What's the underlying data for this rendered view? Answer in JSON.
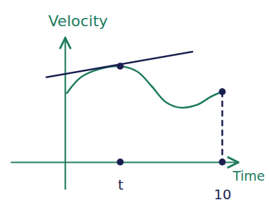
{
  "chart_data": {
    "type": "line",
    "y_label": "Velocity",
    "x_label": "Time",
    "xlim": [
      -3.5,
      11
    ],
    "xticks": [
      {
        "value": 3.5,
        "label": "t"
      },
      10
    ],
    "ylim": [
      -2,
      9
    ],
    "tick_labels": "x",
    "series": [
      {
        "type": "line",
        "color": "#1e7b5e",
        "x": [
          0.1,
          1.0,
          2.2,
          3.5,
          4.6,
          5.5,
          6.4,
          7.3,
          8.4,
          9.3,
          10
        ],
        "values": [
          5.0,
          6.15,
          6.75,
          6.95,
          6.55,
          5.5,
          4.35,
          3.95,
          4.15,
          4.75,
          5.1
        ]
      },
      {
        "type": "line",
        "color": "#1b1f4f",
        "x": [
          -1.2,
          8.1
        ],
        "values": [
          6.15,
          8.0
        ]
      },
      {
        "type": "scatter",
        "color": "#1b1f4f",
        "marker": "dot",
        "x": [
          3.5
        ],
        "values": [
          6.95
        ]
      },
      {
        "type": "line",
        "color": "#1b1f4f",
        "marker": "dot",
        "line_style": "dashed",
        "x": [
          10,
          10
        ],
        "values": [
          5.1,
          0
        ]
      },
      {
        "type": "scatter",
        "color": "#1b1f4f",
        "marker": "dot",
        "x": [
          3.5
        ],
        "values": [
          0
        ]
      }
    ]
  }
}
